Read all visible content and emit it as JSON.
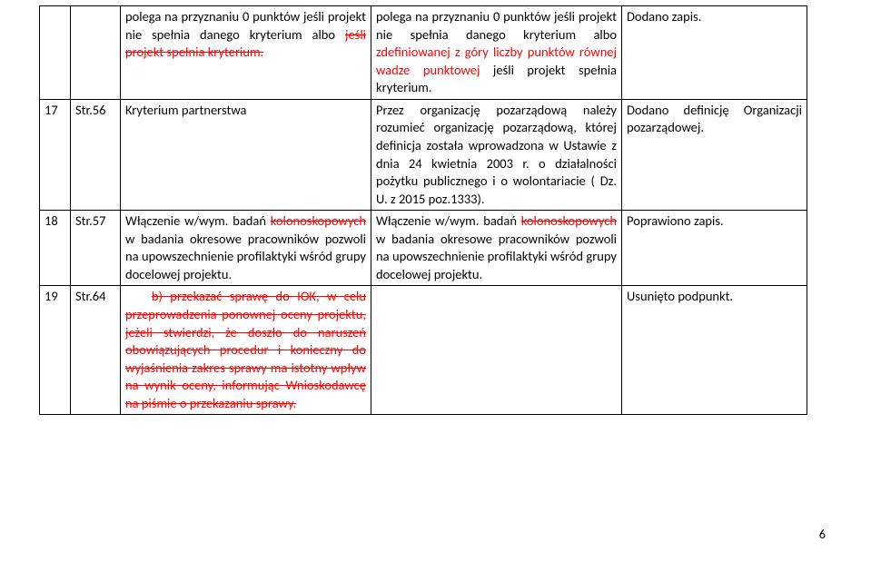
{
  "rows": [
    {
      "c1": "",
      "c2": "",
      "c3_pre": "polega na przyznaniu 0 punktów jeśli projekt nie spełnia danego kryterium albo ",
      "c3_s": "jeśli projekt spełnia kryterium.",
      "c4_pre": "polega na przyznaniu 0 punktów jeśli projekt nie spełnia danego kryterium albo ",
      "c4_red": "zdefiniowanej z góry liczby punktów równej wadze punktowej",
      "c4_post": " jeśli projekt spełnia kryterium.",
      "c5": "Dodano zapis."
    },
    {
      "c1": "17",
      "c2": "Str.56",
      "c3": "Kryterium partnerstwa",
      "c4": "Przez organizację pozarządową należy rozumieć organizację pozarządową, której definicja została wprowadzona w Ustawie z dnia 24 kwietnia 2003 r. o działalności pożytku publicznego i o wolontariacie ( Dz. U. z 2015 poz.1333).",
      "c5": "Dodano definicję Organizacji pozarządowej."
    },
    {
      "c1": "18",
      "c2": "Str.57",
      "c3_pre": "Włączenie w/wym. badań ",
      "c3_s": "kolonoskopowych",
      "c3_post": " w badania okresowe pracowników pozwoli na upowszechnienie profilaktyki wśród grupy docelowej projektu.",
      "c4_pre1": "Włączenie w/wym. badań ",
      "c4_s": "kolonoskopowych",
      "c4_post": " w badania okresowe pracowników pozwoli na upowszechnienie profilaktyki wśród grupy docelowej projektu.",
      "c5": "Poprawiono zapis."
    },
    {
      "c1": "19",
      "c2": "Str.64",
      "c3_s": "b) przekazać sprawę do IOK, w celu przeprowadzenia ponownej oceny projektu, jeżeli stwierdzi, że doszło do naruszeń obowiązujących procedur i konieczny do wyjaśnienia zakres sprawy ma istotny wpływ na wynik oceny, informując Wnioskodawcę na piśmie o przekazaniu sprawy.",
      "c4": "",
      "c5": "Usunięto podpunkt."
    }
  ],
  "pagenum": "6"
}
